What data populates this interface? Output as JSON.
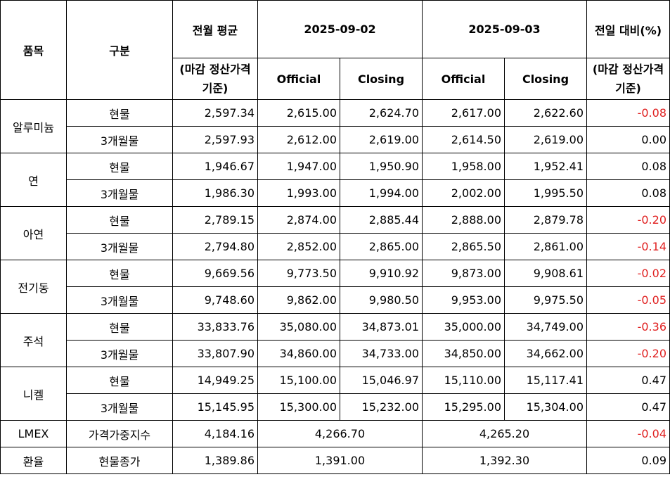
{
  "header": {
    "item": "품목",
    "category": "구분",
    "prev_avg": "전월 평균",
    "prev_avg_sub": "(마감 정산가격 기준)",
    "date1": "2025-09-02",
    "date2": "2025-09-03",
    "change": "전일 대비(%)",
    "change_sub": "(마감 정산가격 기준)",
    "official": "Official",
    "closing": "Closing"
  },
  "groups": [
    {
      "item": "알루미늄",
      "rows": [
        {
          "cat": "현물",
          "avg": "2,597.34",
          "d1_official": "2,615.00",
          "d1_closing": "2,624.70",
          "d2_official": "2,617.00",
          "d2_closing": "2,622.60",
          "change": "-0.08",
          "neg": true
        },
        {
          "cat": "3개월물",
          "avg": "2,597.93",
          "d1_official": "2,612.00",
          "d1_closing": "2,619.00",
          "d2_official": "2,614.50",
          "d2_closing": "2,619.00",
          "change": "0.00",
          "neg": false
        }
      ]
    },
    {
      "item": "연",
      "rows": [
        {
          "cat": "현물",
          "avg": "1,946.67",
          "d1_official": "1,947.00",
          "d1_closing": "1,950.90",
          "d2_official": "1,958.00",
          "d2_closing": "1,952.41",
          "change": "0.08",
          "neg": false
        },
        {
          "cat": "3개월물",
          "avg": "1,986.30",
          "d1_official": "1,993.00",
          "d1_closing": "1,994.00",
          "d2_official": "2,002.00",
          "d2_closing": "1,995.50",
          "change": "0.08",
          "neg": false
        }
      ]
    },
    {
      "item": "아연",
      "rows": [
        {
          "cat": "현물",
          "avg": "2,789.15",
          "d1_official": "2,874.00",
          "d1_closing": "2,885.44",
          "d2_official": "2,888.00",
          "d2_closing": "2,879.78",
          "change": "-0.20",
          "neg": true
        },
        {
          "cat": "3개월물",
          "avg": "2,794.80",
          "d1_official": "2,852.00",
          "d1_closing": "2,865.00",
          "d2_official": "2,865.50",
          "d2_closing": "2,861.00",
          "change": "-0.14",
          "neg": true
        }
      ]
    },
    {
      "item": "전기동",
      "rows": [
        {
          "cat": "현물",
          "avg": "9,669.56",
          "d1_official": "9,773.50",
          "d1_closing": "9,910.92",
          "d2_official": "9,873.00",
          "d2_closing": "9,908.61",
          "change": "-0.02",
          "neg": true
        },
        {
          "cat": "3개월물",
          "avg": "9,748.60",
          "d1_official": "9,862.00",
          "d1_closing": "9,980.50",
          "d2_official": "9,953.00",
          "d2_closing": "9,975.50",
          "change": "-0.05",
          "neg": true
        }
      ]
    },
    {
      "item": "주석",
      "rows": [
        {
          "cat": "현물",
          "avg": "33,833.76",
          "d1_official": "35,080.00",
          "d1_closing": "34,873.01",
          "d2_official": "35,000.00",
          "d2_closing": "34,749.00",
          "change": "-0.36",
          "neg": true
        },
        {
          "cat": "3개월물",
          "avg": "33,807.90",
          "d1_official": "34,860.00",
          "d1_closing": "34,733.00",
          "d2_official": "34,850.00",
          "d2_closing": "34,662.00",
          "change": "-0.20",
          "neg": true
        }
      ]
    },
    {
      "item": "니켈",
      "rows": [
        {
          "cat": "현물",
          "avg": "14,949.25",
          "d1_official": "15,100.00",
          "d1_closing": "15,046.97",
          "d2_official": "15,110.00",
          "d2_closing": "15,117.41",
          "change": "0.47",
          "neg": false
        },
        {
          "cat": "3개월물",
          "avg": "15,145.95",
          "d1_official": "15,300.00",
          "d1_closing": "15,232.00",
          "d2_official": "15,295.00",
          "d2_closing": "15,304.00",
          "change": "0.47",
          "neg": false
        }
      ]
    }
  ],
  "single_rows": [
    {
      "item": "LMEX",
      "cat": "가격가중지수",
      "avg": "4,184.16",
      "d1": "4,266.70",
      "d2": "4,265.20",
      "change": "-0.04",
      "neg": true
    },
    {
      "item": "환율",
      "cat": "현물종가",
      "avg": "1,389.86",
      "d1": "1,391.00",
      "d2": "1,392.30",
      "change": "0.09",
      "neg": false
    }
  ],
  "colors": {
    "negative": "#e02020",
    "header_bg": "#ffffff",
    "border": "#000000"
  }
}
